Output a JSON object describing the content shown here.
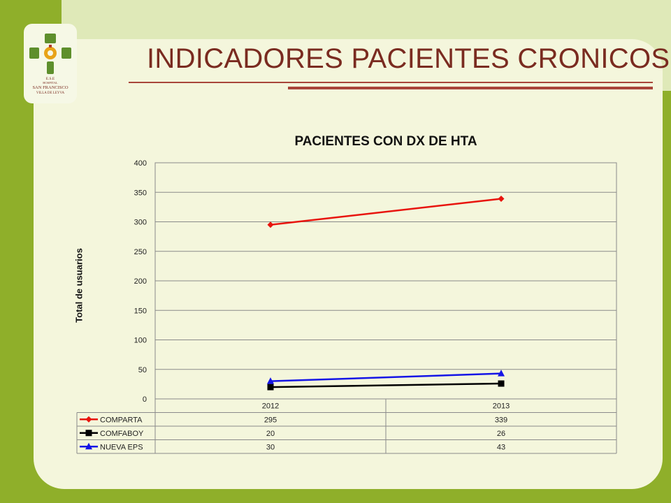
{
  "slide": {
    "title": "INDICADORES PACIENTES CRONICOS",
    "logo": {
      "icon": "hospital-cross-emblem",
      "text_lines": [
        "E.S.E",
        "HOSPITAL",
        "SAN FRANCISCO",
        "VILLA DE LEYVA"
      ],
      "colors": {
        "green": "#5e8f2c",
        "orange": "#e8a317",
        "red": "#b23a2a"
      }
    }
  },
  "chart_data": {
    "type": "line",
    "title": "PACIENTES CON DX DE HTA",
    "xlabel": "",
    "ylabel": "Total de usuarios",
    "categories": [
      "2012",
      "2013"
    ],
    "ylim": [
      0,
      400
    ],
    "yticks": [
      0,
      50,
      100,
      150,
      200,
      250,
      300,
      350,
      400
    ],
    "grid": true,
    "legend": "data-table-below",
    "series": [
      {
        "name": "COMPARTA",
        "values": [
          295,
          339
        ],
        "color": "#e8140e",
        "marker": "diamond"
      },
      {
        "name": "COMFABOY",
        "values": [
          20,
          26
        ],
        "color": "#000000",
        "marker": "square"
      },
      {
        "name": "NUEVA EPS",
        "values": [
          30,
          43
        ],
        "color": "#1515e6",
        "marker": "triangle"
      }
    ]
  }
}
